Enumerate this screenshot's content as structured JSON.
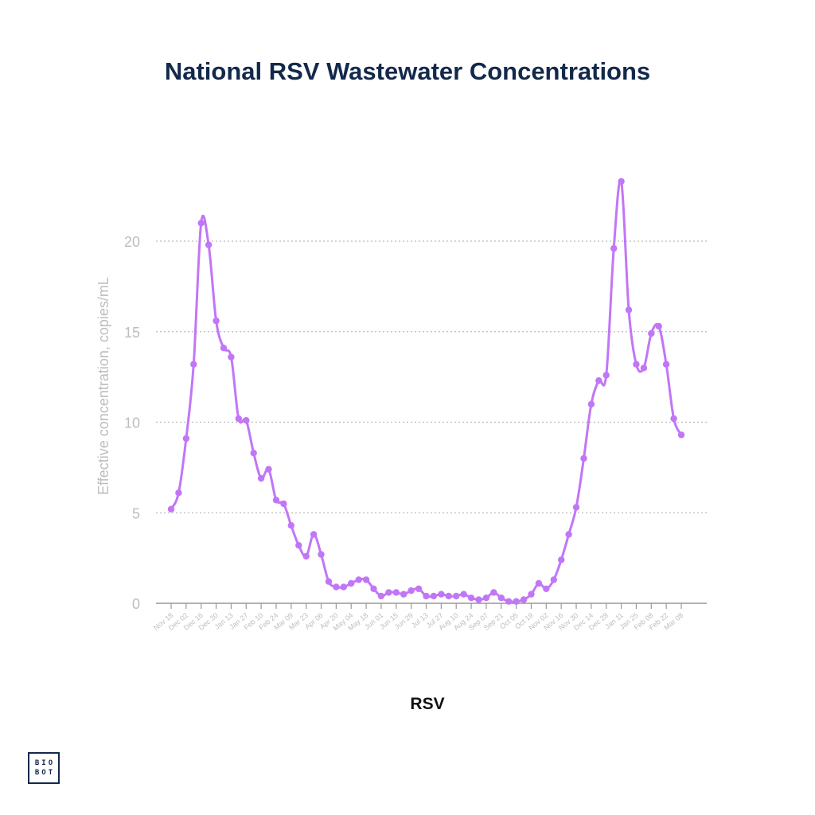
{
  "title": "National RSV Wastewater Concentrations",
  "logo": {
    "line1": "BIO",
    "line2": "BOT"
  },
  "colors": {
    "series": "#c176f7",
    "grid": "#bbbbbb",
    "axis_text": "#bdbdbd",
    "title": "#13294b"
  },
  "chart_data": {
    "type": "line",
    "title": "National RSV Wastewater Concentrations",
    "xlabel": "RSV",
    "ylabel": "Effective concentration, copies/mL",
    "ylim": [
      0,
      25
    ],
    "yticks": [
      0,
      5,
      10,
      15,
      20
    ],
    "grid": "horizontal dotted",
    "x_tick_labels": [
      "Nov 18",
      "Dec 02",
      "Dec 16",
      "Dec 30",
      "Jan 13",
      "Jan 27",
      "Feb 10",
      "Feb 24",
      "Mar 09",
      "Mar 23",
      "Apr 06",
      "Apr 20",
      "May 04",
      "May 18",
      "Jun 01",
      "Jun 15",
      "Jun 29",
      "Jul 13",
      "Jul 27",
      "Aug 10",
      "Aug 24",
      "Sep 07",
      "Sep 21",
      "Oct 05",
      "Oct 19",
      "Nov 02",
      "Nov 16",
      "Nov 30",
      "Dec 14",
      "Dec 28",
      "Jan 11",
      "Jan 25",
      "Feb 08",
      "Feb 22",
      "Mar 08"
    ],
    "series": [
      {
        "values": [
          5.2,
          6.1,
          9.1,
          13.2,
          21.0,
          19.8,
          15.6,
          14.1,
          13.6,
          10.2,
          10.1,
          8.3,
          6.9,
          7.4,
          5.7,
          5.5,
          4.3,
          3.2,
          2.6,
          3.8,
          2.7,
          1.2,
          0.9,
          0.9,
          1.1,
          1.3,
          1.3,
          0.8,
          0.4,
          0.6,
          0.6,
          0.5,
          0.7,
          0.8,
          0.4,
          0.4,
          0.5,
          0.4,
          0.4,
          0.5,
          0.3,
          0.2,
          0.3,
          0.6,
          0.3,
          0.1,
          0.1,
          0.2,
          0.5,
          1.1,
          0.8,
          1.3,
          2.4,
          3.8,
          5.3,
          8.0,
          11.0,
          12.3,
          12.6,
          19.6,
          23.3,
          16.2,
          13.2,
          13.0,
          14.9,
          15.3,
          13.2,
          10.2,
          9.3
        ]
      }
    ]
  }
}
